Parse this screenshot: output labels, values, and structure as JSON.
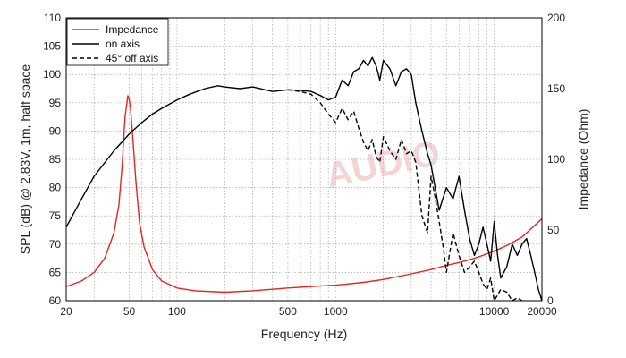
{
  "chart_data": {
    "type": "line",
    "xlabel": "Frequency (Hz)",
    "ylabel_left": "SPL (dB) @ 2.83V, 1m, half space",
    "ylabel_right": "Impedance (Ohm)",
    "x_scale": "log",
    "xlim": [
      20,
      20000
    ],
    "ylim_left": [
      60,
      110
    ],
    "ylim_right": [
      0,
      200
    ],
    "x_ticks": [
      20,
      50,
      100,
      500,
      1000,
      10000,
      20000
    ],
    "x_tick_labels": [
      "20",
      "50",
      "100",
      "500",
      "1000",
      "10000",
      "20000"
    ],
    "y_left_ticks": [
      60,
      65,
      70,
      75,
      80,
      85,
      90,
      95,
      100,
      105,
      110
    ],
    "y_right_ticks": [
      0,
      50,
      100,
      150,
      200
    ],
    "grid": true,
    "legend_position": "top-left",
    "watermark": "AUDIO",
    "series": [
      {
        "name": "Impedance",
        "axis": "right",
        "color": "#e8231f",
        "style": "solid",
        "x": [
          20,
          25,
          30,
          35,
          40,
          43,
          45,
          47,
          49,
          50,
          51,
          53,
          55,
          58,
          62,
          70,
          80,
          100,
          130,
          200,
          300,
          500,
          700,
          1000,
          1500,
          2000,
          3000,
          4000,
          5000,
          6000,
          7000,
          8000,
          10000,
          12000,
          15000,
          20000
        ],
        "values": [
          10,
          14,
          20,
          30,
          48,
          68,
          95,
          130,
          145,
          142,
          135,
          110,
          85,
          55,
          38,
          22,
          14,
          9,
          7,
          6,
          7,
          9,
          10,
          11,
          13,
          15,
          19,
          22,
          25,
          27,
          29,
          31,
          35,
          39,
          45,
          58
        ]
      },
      {
        "name": "on axis",
        "axis": "left",
        "color": "#000000",
        "style": "solid",
        "x": [
          20,
          25,
          30,
          40,
          50,
          60,
          70,
          80,
          100,
          120,
          150,
          180,
          200,
          250,
          300,
          400,
          500,
          600,
          700,
          800,
          900,
          1000,
          1100,
          1200,
          1300,
          1400,
          1500,
          1600,
          1700,
          1800,
          1900,
          2000,
          2200,
          2400,
          2600,
          2800,
          3000,
          3200,
          3500,
          3800,
          4000,
          4500,
          5000,
          5500,
          6000,
          6500,
          7000,
          7500,
          8000,
          8500,
          9000,
          9500,
          10000,
          10500,
          11000,
          12000,
          13000,
          14000,
          15000,
          16000,
          17000,
          18000,
          19000,
          20000
        ],
        "values": [
          73,
          78,
          82,
          86.5,
          89.5,
          91.5,
          93,
          94,
          95.5,
          96.5,
          97.5,
          98,
          97.8,
          97.5,
          97.8,
          97,
          97.3,
          97.2,
          97,
          96.3,
          95.5,
          96,
          99,
          98,
          100.5,
          101,
          102.5,
          101.5,
          103,
          101.5,
          99,
          102.5,
          101,
          98,
          100.5,
          101,
          100,
          95,
          90,
          86,
          84,
          76,
          80,
          78,
          82,
          76,
          71,
          68,
          70,
          73,
          70,
          67,
          74,
          68,
          64,
          66,
          70,
          68,
          70,
          71,
          68,
          65,
          62,
          60
        ]
      },
      {
        "name": "45° off axis",
        "axis": "left",
        "color": "#000000",
        "style": "dashed",
        "x": [
          500,
          600,
          700,
          800,
          900,
          1000,
          1100,
          1200,
          1300,
          1400,
          1500,
          1600,
          1700,
          1800,
          1900,
          2000,
          2200,
          2400,
          2600,
          2800,
          3000,
          3200,
          3500,
          3800,
          4000,
          4200,
          4500,
          4800,
          5000,
          5500,
          6000,
          6500,
          7000,
          7500,
          8000,
          8500,
          9000,
          9500,
          10000,
          11000,
          12000,
          13000,
          14000,
          15000
        ],
        "values": [
          97.3,
          97,
          96.5,
          95,
          93,
          91.5,
          94,
          92,
          93.5,
          90.5,
          88,
          86.5,
          88.5,
          85.5,
          84.5,
          89,
          86.5,
          85,
          88.5,
          86,
          86.5,
          84.5,
          75,
          72,
          82,
          79,
          74,
          69,
          65,
          72,
          68,
          65,
          66,
          67,
          65,
          63,
          62,
          64,
          60,
          62,
          61.5,
          60,
          60.5,
          60
        ]
      }
    ]
  }
}
